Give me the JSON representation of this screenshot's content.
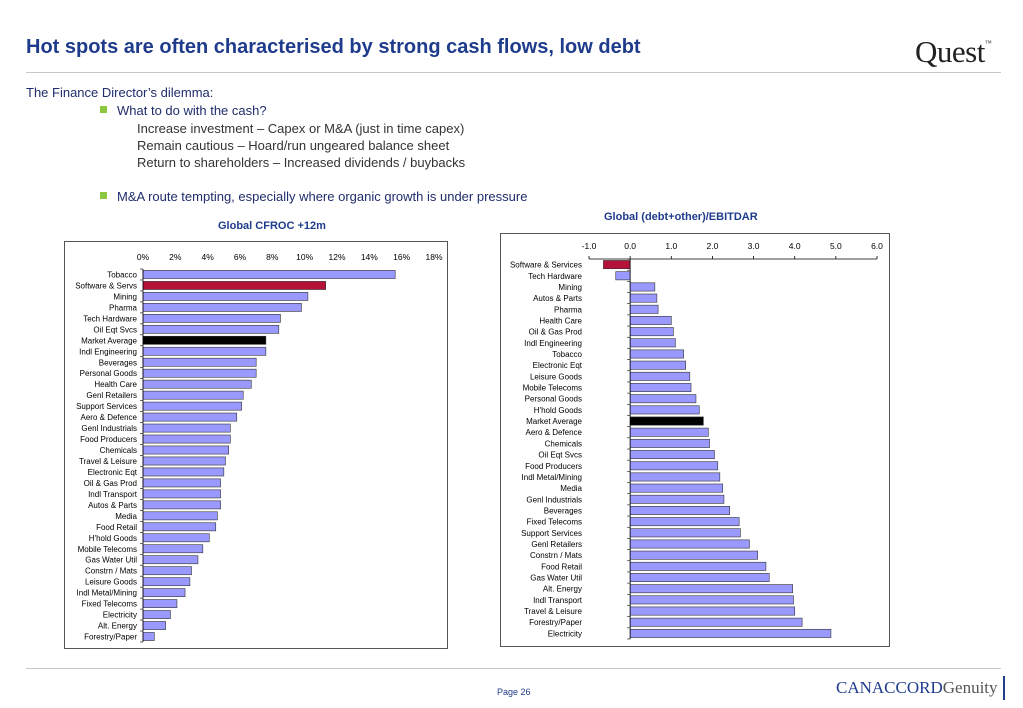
{
  "header": {
    "title": "Hot spots are often characterised by strong cash flows, low debt",
    "logo": "Quest",
    "logo_tm": "™"
  },
  "content": {
    "heading": "The Finance Director’s dilemma:",
    "bullets": [
      {
        "text": "What to do with the cash?",
        "sub": [
          "Increase investment – Capex or M&A (just in time capex)",
          "Remain cautious – Hoard/run ungeared balance sheet",
          "Return to shareholders – Increased dividends / buybacks"
        ]
      },
      {
        "text": "M&A route tempting, especially where organic growth is under pressure",
        "sub": []
      }
    ]
  },
  "footer": {
    "page": "Page 26",
    "brand": "CANACCORD",
    "brand2": "Genuity"
  },
  "colors": {
    "bar": "#9999ff",
    "highlight_red": "#b5123a",
    "highlight_black": "#000000",
    "title_blue": "#1f3c8c"
  },
  "chart_data": [
    {
      "type": "bar",
      "orientation": "horizontal",
      "title": "Global CFROC +12m",
      "xlim": [
        0,
        18
      ],
      "ticks": [
        "0%",
        "2%",
        "4%",
        "6%",
        "8%",
        "10%",
        "12%",
        "14%",
        "16%",
        "18%"
      ],
      "tick_values": [
        0,
        2,
        4,
        6,
        8,
        10,
        12,
        14,
        16,
        18
      ],
      "categories": [
        "Tobacco",
        "Software & Servs",
        "Mining",
        "Pharma",
        "Tech Hardware",
        "Oil Eqt Svcs",
        "Market Average",
        "Indl Engineering",
        "Beverages",
        "Personal Goods",
        "Health Care",
        "Genl Retailers",
        "Support Services",
        "Aero & Defence",
        "Genl Industrials",
        "Food Producers",
        "Chemicals",
        "Travel & Leisure",
        "Electronic Eqt",
        "Oil & Gas Prod",
        "Indl Transport",
        "Autos & Parts",
        "Media",
        "Food Retail",
        "H'hold Goods",
        "Mobile Telecoms",
        "Gas Water Util",
        "Constrn / Mats",
        "Leisure Goods",
        "Indl Metal/Mining",
        "Fixed Telecoms",
        "Electricity",
        "Alt. Energy",
        "Forestry/Paper"
      ],
      "values": [
        15.6,
        11.3,
        10.2,
        9.8,
        8.5,
        8.4,
        7.6,
        7.6,
        7.0,
        7.0,
        6.7,
        6.2,
        6.1,
        5.8,
        5.4,
        5.4,
        5.3,
        5.1,
        5.0,
        4.8,
        4.8,
        4.8,
        4.6,
        4.5,
        4.1,
        3.7,
        3.4,
        3.0,
        2.9,
        2.6,
        2.1,
        1.7,
        1.4,
        0.7
      ],
      "highlight": {
        "Software & Servs": "red",
        "Market Average": "black"
      }
    },
    {
      "type": "bar",
      "orientation": "horizontal",
      "title": "Global (debt+other)/EBITDAR",
      "xlim": [
        -1.0,
        6.0
      ],
      "ticks": [
        "-1.0",
        "0.0",
        "1.0",
        "2.0",
        "3.0",
        "4.0",
        "5.0",
        "6.0"
      ],
      "tick_values": [
        -1,
        0,
        1,
        2,
        3,
        4,
        5,
        6
      ],
      "categories": [
        "Software & Services",
        "Tech Hardware",
        "Mining",
        "Autos & Parts",
        "Pharma",
        "Health Care",
        "Oil & Gas Prod",
        "Indl Engineering",
        "Tobacco",
        "Electronic Eqt",
        "Leisure Goods",
        "Mobile Telecoms",
        "Personal Goods",
        "H'hold Goods",
        "Market Average",
        "Aero & Defence",
        "Chemicals",
        "Oil Eqt Svcs",
        "Food Producers",
        "Indl Metal/Mining",
        "Media",
        "Genl Industrials",
        "Beverages",
        "Fixed Telecoms",
        "Support Services",
        "Genl Retailers",
        "Constrn / Mats",
        "Food Retail",
        "Gas Water Util",
        "Alt. Energy",
        "Indl Transport",
        "Travel & Leisure",
        "Forestry/Paper",
        "Electricity"
      ],
      "values": [
        -0.65,
        -0.35,
        0.6,
        0.65,
        0.68,
        1.0,
        1.05,
        1.1,
        1.3,
        1.35,
        1.45,
        1.48,
        1.6,
        1.68,
        1.78,
        1.9,
        1.93,
        2.05,
        2.13,
        2.18,
        2.25,
        2.28,
        2.42,
        2.65,
        2.68,
        2.9,
        3.1,
        3.3,
        3.38,
        3.95,
        3.97,
        4.0,
        4.18,
        4.88
      ],
      "highlight": {
        "Software & Services": "red",
        "Market Average": "black"
      }
    }
  ]
}
